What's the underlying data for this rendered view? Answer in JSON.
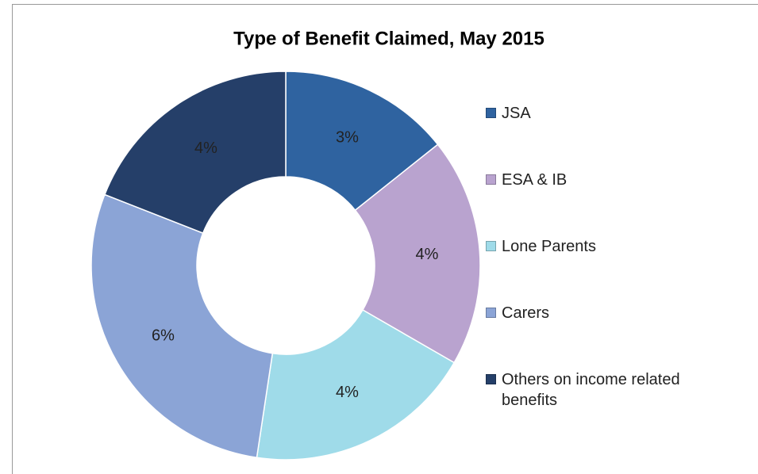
{
  "chart_data": {
    "type": "donut",
    "title": "Type of Benefit Claimed, May 2015",
    "categories": [
      "JSA",
      "ESA & IB",
      "Lone Parents",
      "Carers",
      "Others on income related benefits"
    ],
    "values": [
      3,
      4,
      4,
      6,
      4
    ],
    "value_labels": [
      "3%",
      "4%",
      "4%",
      "6%",
      "4%"
    ],
    "colors": [
      "#2f63a0",
      "#b9a3cf",
      "#9fdbe9",
      "#8ba4d6",
      "#253f69"
    ],
    "legend": "right"
  }
}
